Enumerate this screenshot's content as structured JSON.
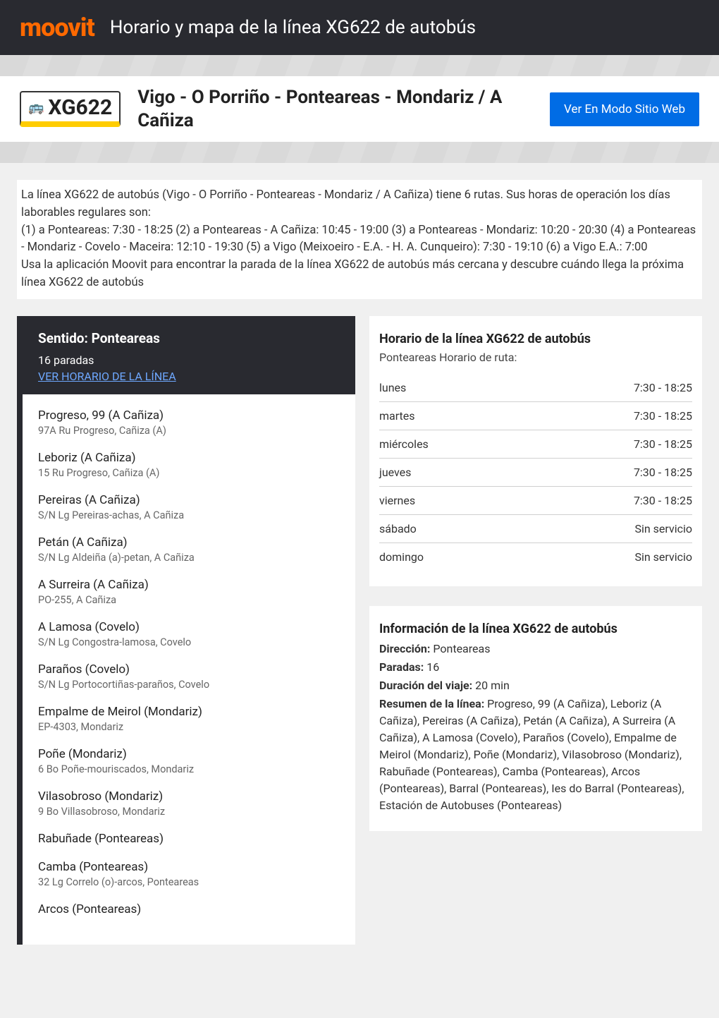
{
  "header": {
    "logo": "moovit",
    "title": "Horario y mapa de la línea XG622 de autobús",
    "logo_color": "#ff6900",
    "bg_color": "#292a30"
  },
  "route": {
    "code": "XG622",
    "bus_glyph": "🚌",
    "badge_underline_color": "#ffcc00",
    "title": "Vigo - O Porriño - Ponteareas - Mondariz / A Cañiza",
    "web_button": "Ver En Modo Sitio Web",
    "web_button_bg": "#006ce5"
  },
  "description": {
    "p1": "La línea XG622 de autobús (Vigo - O Porriño - Ponteareas - Mondariz / A Cañiza) tiene 6 rutas. Sus horas de operación los días laborables regulares son:",
    "p2": "(1) a Ponteareas: 7:30 - 18:25 (2) a Ponteareas - A Cañiza: 10:45 - 19:00 (3) a Ponteareas - Mondariz: 10:20 - 20:30 (4) a Ponteareas - Mondariz - Covelo - Maceira: 12:10 - 19:30 (5) a Vigo (Meixoeiro - E.A. - H. A. Cunqueiro): 7:30 - 19:10 (6) a Vigo E.A.: 7:00",
    "p3": "Usa la aplicación Moovit para encontrar la parada de la línea XG622 de autobús más cercana y descubre cuándo llega la próxima línea XG622 de autobús"
  },
  "direction": {
    "label": "Sentido: Ponteareas",
    "stops_count": "16 paradas",
    "schedule_link": "VER HORARIO DE LA LÍNEA"
  },
  "stops": [
    {
      "name": "Progreso, 99 (A Cañiza)",
      "addr": "97A Ru Progreso, Cañiza (A)"
    },
    {
      "name": "Leboriz (A Cañiza)",
      "addr": "15 Ru Progreso, Cañiza (A)"
    },
    {
      "name": "Pereiras (A Cañiza)",
      "addr": "S/N Lg Pereiras-achas, A Cañiza"
    },
    {
      "name": "Petán (A Cañiza)",
      "addr": "S/N Lg Aldeiña (a)-petan, A Cañiza"
    },
    {
      "name": "A Surreira (A Cañiza)",
      "addr": "PO-255, A Cañiza"
    },
    {
      "name": "A Lamosa (Covelo)",
      "addr": "S/N Lg Congostra-lamosa, Covelo"
    },
    {
      "name": "Paraños (Covelo)",
      "addr": "S/N Lg Portocortiñas-paraños, Covelo"
    },
    {
      "name": "Empalme de Meirol (Mondariz)",
      "addr": "EP-4303, Mondariz"
    },
    {
      "name": "Poñe (Mondariz)",
      "addr": "6 Bo Poñe-mouriscados, Mondariz"
    },
    {
      "name": "Vilasobroso (Mondariz)",
      "addr": "9 Bo Villasobroso, Mondariz"
    },
    {
      "name": "Rabuñade (Ponteareas)",
      "addr": ""
    },
    {
      "name": "Camba (Ponteareas)",
      "addr": "32 Lg Correlo (o)-arcos, Ponteareas"
    },
    {
      "name": "Arcos (Ponteareas)",
      "addr": ""
    }
  ],
  "schedule": {
    "title": "Horario de la línea XG622 de autobús",
    "subtitle": "Ponteareas Horario de ruta:",
    "rows": [
      {
        "day": "lunes",
        "time": "7:30 - 18:25"
      },
      {
        "day": "martes",
        "time": "7:30 - 18:25"
      },
      {
        "day": "miércoles",
        "time": "7:30 - 18:25"
      },
      {
        "day": "jueves",
        "time": "7:30 - 18:25"
      },
      {
        "day": "viernes",
        "time": "7:30 - 18:25"
      },
      {
        "day": "sábado",
        "time": "Sin servicio"
      },
      {
        "day": "domingo",
        "time": "Sin servicio"
      }
    ]
  },
  "info": {
    "title": "Información de la línea XG622 de autobús",
    "direction_label": "Dirección:",
    "direction_value": "Ponteareas",
    "stops_label": "Paradas:",
    "stops_value": "16",
    "duration_label": "Duración del viaje:",
    "duration_value": "20 min",
    "summary_label": "Resumen de la línea:",
    "summary_value": "Progreso, 99 (A Cañiza), Leboriz (A Cañiza), Pereiras (A Cañiza), Petán (A Cañiza), A Surreira (A Cañiza), A Lamosa (Covelo), Paraños (Covelo), Empalme de Meirol (Mondariz), Poñe (Mondariz), Vilasobroso (Mondariz), Rabuñade (Ponteareas), Camba (Ponteareas), Arcos (Ponteareas), Barral (Ponteareas), Ies do Barral (Ponteareas), Estación de Autobuses (Ponteareas)"
  }
}
